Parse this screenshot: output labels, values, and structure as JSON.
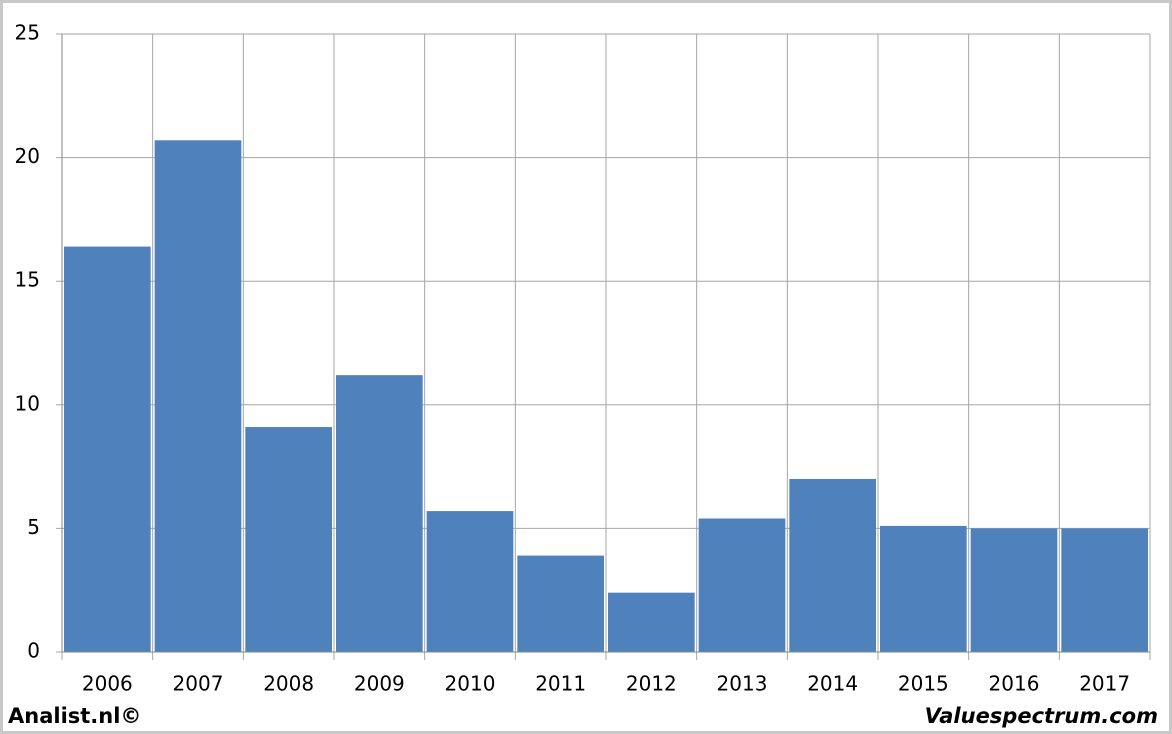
{
  "chart_data": {
    "type": "bar",
    "categories": [
      "2006",
      "2007",
      "2008",
      "2009",
      "2010",
      "2011",
      "2012",
      "2013",
      "2014",
      "2015",
      "2016",
      "2017"
    ],
    "values": [
      16.4,
      20.7,
      9.1,
      11.2,
      5.7,
      3.9,
      2.4,
      5.4,
      7.0,
      5.1,
      5.0,
      5.0
    ],
    "color": "#4f81bd",
    "ylim": [
      0,
      25
    ],
    "yticks": [
      0,
      5,
      10,
      15,
      20,
      25
    ],
    "grid": true,
    "annotations": [
      "Analist.nl©",
      "Valuespectrum.com"
    ]
  }
}
